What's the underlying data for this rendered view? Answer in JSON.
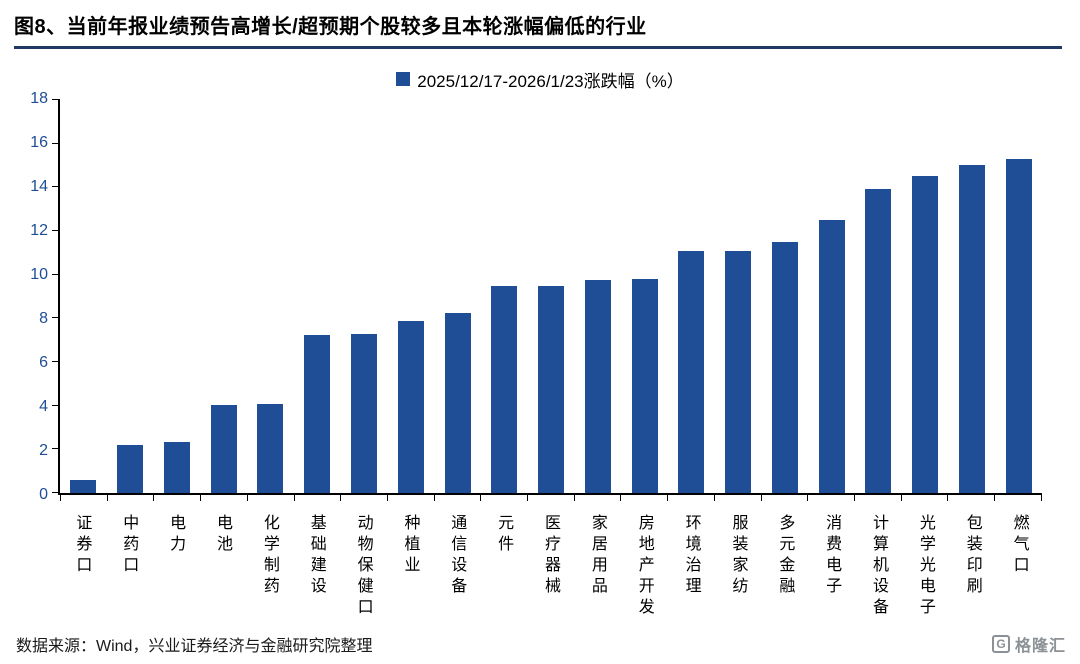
{
  "header": {
    "title": "图8、当前年报业绩预告高增长/超预期个股较多且本轮涨幅偏低的行业"
  },
  "legend": {
    "label": "2025/12/17-2026/1/23涨跌幅（%）"
  },
  "footer": {
    "source": "数据来源：Wind，兴业证券经济与金融研究院整理",
    "logo_letter": "G",
    "logo_text": "格隆汇"
  },
  "colors": {
    "bar": "#1f4e96",
    "axis": "#000000",
    "tick_label": "#1f4e96",
    "title_rule": "#1f3864",
    "logo_gray": "#8c9196"
  },
  "chart_data": {
    "type": "bar",
    "title": "2025/12/17-2026/1/23涨跌幅（%）",
    "categories": [
      "证券口",
      "中药口",
      "电力",
      "电池",
      "化学制药",
      "基础建设",
      "动物保健口",
      "种植业",
      "通信设备",
      "元件",
      "医疗器械",
      "家居用品",
      "房地产开发",
      "环境治理",
      "服装家纺",
      "多元金融",
      "消费电子",
      "计算机设备",
      "光学光电子",
      "包装印刷",
      "燃气口"
    ],
    "values": [
      0.6,
      2.2,
      2.3,
      4.0,
      4.05,
      7.2,
      7.25,
      7.8,
      8.2,
      9.4,
      9.4,
      9.7,
      9.75,
      11.0,
      11.0,
      11.4,
      12.4,
      13.8,
      14.4,
      14.9,
      15.2
    ],
    "xlabel": "",
    "ylabel": "",
    "ylim": [
      0,
      18
    ],
    "y_ticks": [
      0,
      2,
      4,
      6,
      8,
      10,
      12,
      14,
      16,
      18
    ],
    "grid": false,
    "legend_position": "top"
  }
}
